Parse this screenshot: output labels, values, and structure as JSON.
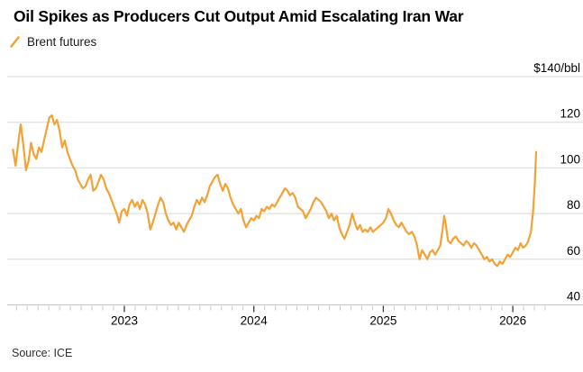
{
  "header": {
    "title": "Oil Spikes as Producers Cut Output Amid Escalating Iran War"
  },
  "legend": {
    "items": [
      {
        "label": "Brent futures",
        "color": "#F2A236",
        "icon": "slash-icon"
      }
    ]
  },
  "footer": {
    "source": "Source: ICE"
  },
  "colors": {
    "line": "#F2A236",
    "grid": "#d9d9d9",
    "axis_baseline": "#c2c2c2",
    "minor_tick": "#c9c9c9",
    "major_tick": "#3c3c3c",
    "label_text": "#000000"
  },
  "chart_data": {
    "type": "line",
    "title": "Oil Spikes as Producers Cut Output Amid Escalating Iran War",
    "source": "Source: ICE",
    "grid": "horizontal",
    "legend_position": "top-left",
    "x_axis": {
      "range": [
        2022.1,
        2026.3
      ],
      "major_ticks": [
        2023,
        2024,
        2025,
        2026
      ],
      "minor_tick_interval": "monthly"
    },
    "y_axis": {
      "side": "right",
      "range": [
        40,
        140
      ],
      "ticks": [
        {
          "value": 140,
          "label": "$140/bbl"
        },
        {
          "value": 120,
          "label": "120"
        },
        {
          "value": 100,
          "label": "100"
        },
        {
          "value": 80,
          "label": "80"
        },
        {
          "value": 60,
          "label": "60"
        },
        {
          "value": 40,
          "label": "40"
        }
      ]
    },
    "series": [
      {
        "name": "Brent futures",
        "color": "#F2A236",
        "points": [
          [
            2022.14,
            108
          ],
          [
            2022.16,
            101
          ],
          [
            2022.18,
            111
          ],
          [
            2022.2,
            119
          ],
          [
            2022.22,
            110
          ],
          [
            2022.24,
            99
          ],
          [
            2022.26,
            103
          ],
          [
            2022.28,
            111
          ],
          [
            2022.3,
            106
          ],
          [
            2022.32,
            104
          ],
          [
            2022.34,
            109
          ],
          [
            2022.36,
            107
          ],
          [
            2022.38,
            112
          ],
          [
            2022.4,
            117
          ],
          [
            2022.42,
            122
          ],
          [
            2022.44,
            123
          ],
          [
            2022.46,
            119
          ],
          [
            2022.48,
            121
          ],
          [
            2022.5,
            116
          ],
          [
            2022.52,
            109
          ],
          [
            2022.54,
            112
          ],
          [
            2022.56,
            107
          ],
          [
            2022.58,
            104
          ],
          [
            2022.6,
            101
          ],
          [
            2022.62,
            99
          ],
          [
            2022.64,
            95
          ],
          [
            2022.66,
            93
          ],
          [
            2022.68,
            91
          ],
          [
            2022.7,
            92
          ],
          [
            2022.72,
            95
          ],
          [
            2022.74,
            97
          ],
          [
            2022.76,
            90
          ],
          [
            2022.78,
            91
          ],
          [
            2022.8,
            94
          ],
          [
            2022.82,
            97
          ],
          [
            2022.84,
            95
          ],
          [
            2022.86,
            91
          ],
          [
            2022.88,
            89
          ],
          [
            2022.9,
            86
          ],
          [
            2022.92,
            83
          ],
          [
            2022.94,
            80
          ],
          [
            2022.96,
            76
          ],
          [
            2022.98,
            81
          ],
          [
            2023.0,
            82
          ],
          [
            2023.02,
            79
          ],
          [
            2023.04,
            84
          ],
          [
            2023.06,
            86
          ],
          [
            2023.08,
            83
          ],
          [
            2023.1,
            85
          ],
          [
            2023.12,
            82
          ],
          [
            2023.14,
            86
          ],
          [
            2023.16,
            84
          ],
          [
            2023.18,
            80
          ],
          [
            2023.2,
            73
          ],
          [
            2023.22,
            76
          ],
          [
            2023.24,
            80
          ],
          [
            2023.26,
            84
          ],
          [
            2023.28,
            87
          ],
          [
            2023.3,
            85
          ],
          [
            2023.32,
            80
          ],
          [
            2023.34,
            77
          ],
          [
            2023.36,
            75
          ],
          [
            2023.38,
            76
          ],
          [
            2023.4,
            73
          ],
          [
            2023.42,
            76
          ],
          [
            2023.44,
            74
          ],
          [
            2023.46,
            72
          ],
          [
            2023.48,
            75
          ],
          [
            2023.5,
            77
          ],
          [
            2023.52,
            79
          ],
          [
            2023.54,
            83
          ],
          [
            2023.56,
            86
          ],
          [
            2023.58,
            84
          ],
          [
            2023.6,
            87
          ],
          [
            2023.62,
            85
          ],
          [
            2023.64,
            88
          ],
          [
            2023.66,
            92
          ],
          [
            2023.68,
            94
          ],
          [
            2023.7,
            96
          ],
          [
            2023.72,
            97
          ],
          [
            2023.74,
            93
          ],
          [
            2023.76,
            90
          ],
          [
            2023.78,
            93
          ],
          [
            2023.8,
            91
          ],
          [
            2023.82,
            87
          ],
          [
            2023.84,
            84
          ],
          [
            2023.86,
            82
          ],
          [
            2023.88,
            80
          ],
          [
            2023.9,
            82
          ],
          [
            2023.92,
            77
          ],
          [
            2023.94,
            74
          ],
          [
            2023.96,
            76
          ],
          [
            2023.98,
            78
          ],
          [
            2024.0,
            77
          ],
          [
            2024.02,
            79
          ],
          [
            2024.04,
            78
          ],
          [
            2024.06,
            82
          ],
          [
            2024.08,
            81
          ],
          [
            2024.1,
            83
          ],
          [
            2024.12,
            82
          ],
          [
            2024.14,
            84
          ],
          [
            2024.16,
            83
          ],
          [
            2024.18,
            85
          ],
          [
            2024.2,
            87
          ],
          [
            2024.22,
            89
          ],
          [
            2024.24,
            91
          ],
          [
            2024.26,
            90
          ],
          [
            2024.28,
            88
          ],
          [
            2024.3,
            89
          ],
          [
            2024.32,
            87
          ],
          [
            2024.34,
            83
          ],
          [
            2024.36,
            82
          ],
          [
            2024.38,
            81
          ],
          [
            2024.4,
            78
          ],
          [
            2024.42,
            80
          ],
          [
            2024.44,
            82
          ],
          [
            2024.46,
            85
          ],
          [
            2024.48,
            87
          ],
          [
            2024.5,
            86
          ],
          [
            2024.52,
            85
          ],
          [
            2024.54,
            83
          ],
          [
            2024.56,
            81
          ],
          [
            2024.58,
            78
          ],
          [
            2024.6,
            80
          ],
          [
            2024.62,
            77
          ],
          [
            2024.64,
            79
          ],
          [
            2024.66,
            74
          ],
          [
            2024.68,
            71
          ],
          [
            2024.7,
            69
          ],
          [
            2024.72,
            72
          ],
          [
            2024.74,
            75
          ],
          [
            2024.76,
            80
          ],
          [
            2024.78,
            76
          ],
          [
            2024.8,
            73
          ],
          [
            2024.82,
            75
          ],
          [
            2024.84,
            72
          ],
          [
            2024.86,
            73
          ],
          [
            2024.88,
            72
          ],
          [
            2024.9,
            74
          ],
          [
            2024.92,
            72
          ],
          [
            2024.94,
            73
          ],
          [
            2024.96,
            74
          ],
          [
            2024.98,
            75
          ],
          [
            2025.0,
            76
          ],
          [
            2025.02,
            78
          ],
          [
            2025.04,
            82
          ],
          [
            2025.06,
            80
          ],
          [
            2025.08,
            77
          ],
          [
            2025.1,
            75
          ],
          [
            2025.12,
            74
          ],
          [
            2025.14,
            76
          ],
          [
            2025.16,
            74
          ],
          [
            2025.18,
            72
          ],
          [
            2025.2,
            71
          ],
          [
            2025.22,
            72
          ],
          [
            2025.24,
            70
          ],
          [
            2025.26,
            66
          ],
          [
            2025.28,
            60
          ],
          [
            2025.3,
            64
          ],
          [
            2025.32,
            62
          ],
          [
            2025.34,
            60
          ],
          [
            2025.36,
            63
          ],
          [
            2025.38,
            64
          ],
          [
            2025.4,
            62
          ],
          [
            2025.42,
            64
          ],
          [
            2025.44,
            66
          ],
          [
            2025.46,
            74
          ],
          [
            2025.47,
            79
          ],
          [
            2025.48,
            76
          ],
          [
            2025.5,
            68
          ],
          [
            2025.52,
            67
          ],
          [
            2025.54,
            69
          ],
          [
            2025.56,
            70
          ],
          [
            2025.58,
            68
          ],
          [
            2025.6,
            67
          ],
          [
            2025.62,
            66
          ],
          [
            2025.64,
            68
          ],
          [
            2025.66,
            67
          ],
          [
            2025.68,
            65
          ],
          [
            2025.7,
            67
          ],
          [
            2025.72,
            66
          ],
          [
            2025.74,
            64
          ],
          [
            2025.76,
            62
          ],
          [
            2025.78,
            60
          ],
          [
            2025.8,
            61
          ],
          [
            2025.82,
            59
          ],
          [
            2025.84,
            60
          ],
          [
            2025.86,
            58
          ],
          [
            2025.88,
            57
          ],
          [
            2025.9,
            59
          ],
          [
            2025.92,
            58
          ],
          [
            2025.94,
            60
          ],
          [
            2025.96,
            62
          ],
          [
            2025.98,
            61
          ],
          [
            2026.0,
            63
          ],
          [
            2026.02,
            65
          ],
          [
            2026.04,
            64
          ],
          [
            2026.06,
            67
          ],
          [
            2026.08,
            65
          ],
          [
            2026.1,
            66
          ],
          [
            2026.12,
            68
          ],
          [
            2026.14,
            72
          ],
          [
            2026.155,
            80
          ],
          [
            2026.17,
            93
          ],
          [
            2026.18,
            107
          ]
        ]
      }
    ]
  }
}
